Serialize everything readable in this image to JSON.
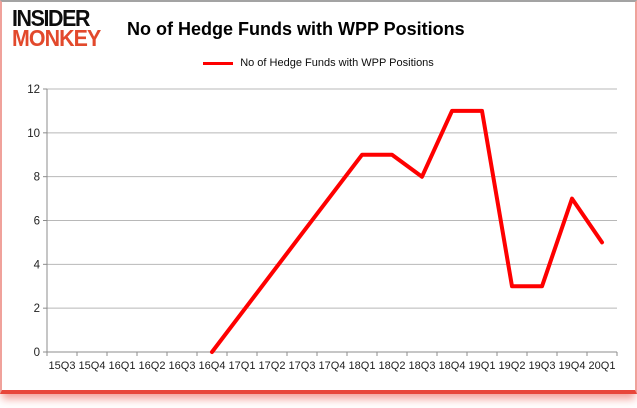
{
  "logo": {
    "line1": "INSIDER",
    "line2": "MONKEY"
  },
  "header": {
    "title": "No of Hedge Funds with WPP Positions"
  },
  "legend": {
    "label": "No of Hedge Funds with WPP Positions"
  },
  "colors": {
    "series_red": "#fe0000",
    "logo_black": "#0d0d0d",
    "logo_red": "#e2492c",
    "gridline": "#b8b8b8",
    "axis": "#8c8c8c",
    "tick_label": "#1f1f1f",
    "frame_bottom_red": "#e8473b",
    "frame_side_pink": "#f0a29b",
    "frame_top_gray": "#a3a3a3"
  },
  "chart_data": {
    "type": "line",
    "title": "No of Hedge Funds with WPP Positions",
    "categories": [
      "15Q3",
      "15Q4",
      "16Q1",
      "16Q2",
      "16Q3",
      "16Q4",
      "17Q1",
      "17Q2",
      "17Q3",
      "17Q4",
      "18Q1",
      "18Q2",
      "18Q3",
      "18Q4",
      "19Q1",
      "19Q2",
      "19Q3",
      "19Q4",
      "20Q1"
    ],
    "series": [
      {
        "name": "No of Hedge Funds with WPP Positions",
        "color": "#fe0000",
        "values": [
          null,
          null,
          null,
          null,
          null,
          0,
          1.8,
          3.6,
          5.4,
          7.2,
          9,
          9,
          8,
          11,
          11,
          3,
          3,
          7,
          5
        ]
      }
    ],
    "xlabel": "",
    "ylabel": "",
    "ylim": [
      0,
      12
    ],
    "yticks": [
      0,
      2,
      4,
      6,
      8,
      10,
      12
    ],
    "grid": true,
    "legend_position": "top-center"
  }
}
